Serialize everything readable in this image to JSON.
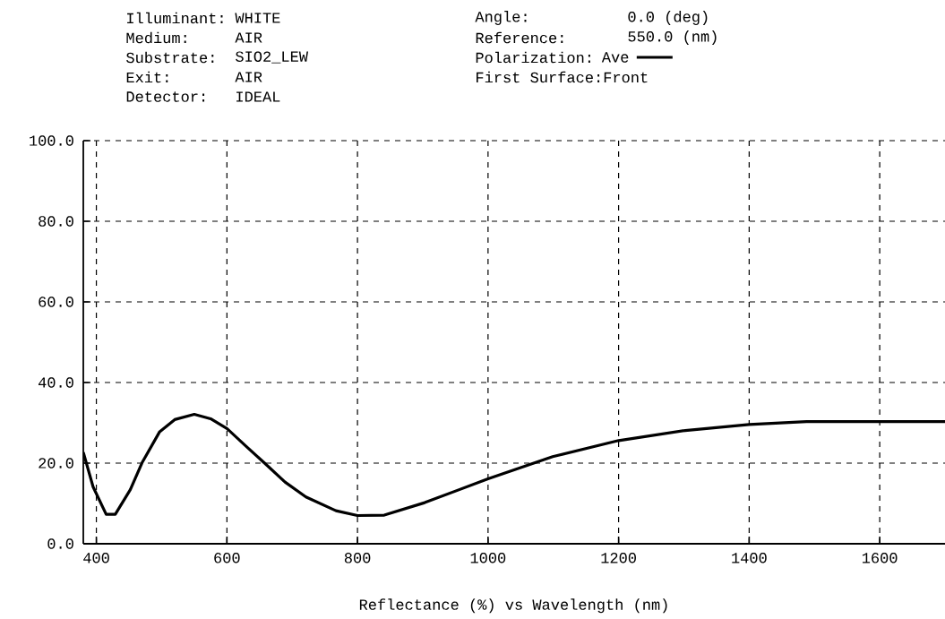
{
  "chart_data": {
    "type": "line",
    "xlabel": "Reflectance (%)  vs  Wavelength (nm)",
    "annotations": [
      "Illuminant:",
      "WHITE",
      "Angle:",
      "0.0 (deg)",
      "Medium:",
      "AIR",
      "Reference:",
      "550.0 (nm)",
      "Substrate:",
      "SIO2_LEW",
      "Exit:",
      "AIR",
      "First Surface:Front",
      "Detector:",
      "IDEAL"
    ],
    "legend_title": "Polarization:",
    "legend": "top",
    "series": [
      {
        "name": "Ave",
        "color": "#000000",
        "line_style": "solid",
        "x": [
          380,
          395,
          415,
          429,
          452,
          470,
          497,
          520,
          550,
          575,
          600,
          630,
          657,
          689,
          721,
          767,
          800,
          841,
          903,
          1000,
          1099,
          1200,
          1302,
          1400,
          1488,
          1600,
          1700
        ],
        "values": [
          22.7,
          14.1,
          7.3,
          7.3,
          13.4,
          20.1,
          27.8,
          30.8,
          32.1,
          31.0,
          28.6,
          24.1,
          20.1,
          15.3,
          11.6,
          8.2,
          7.0,
          7.1,
          10.2,
          16.1,
          21.6,
          25.6,
          28.1,
          29.6,
          30.3,
          30.3,
          30.3
        ]
      }
    ],
    "xlim": [
      380,
      1700
    ],
    "ylim": [
      0,
      100
    ],
    "xticks": [
      400,
      600,
      800,
      1000,
      1200,
      1400,
      1600
    ],
    "yticks": [
      {
        "value": 0,
        "label": "0.0"
      },
      {
        "value": 20,
        "label": "20.0"
      },
      {
        "value": 40,
        "label": "40.0"
      },
      {
        "value": 60,
        "label": "60.0"
      },
      {
        "value": 80,
        "label": "80.0"
      },
      {
        "value": 100,
        "label": "100.0"
      }
    ],
    "grid": true
  }
}
